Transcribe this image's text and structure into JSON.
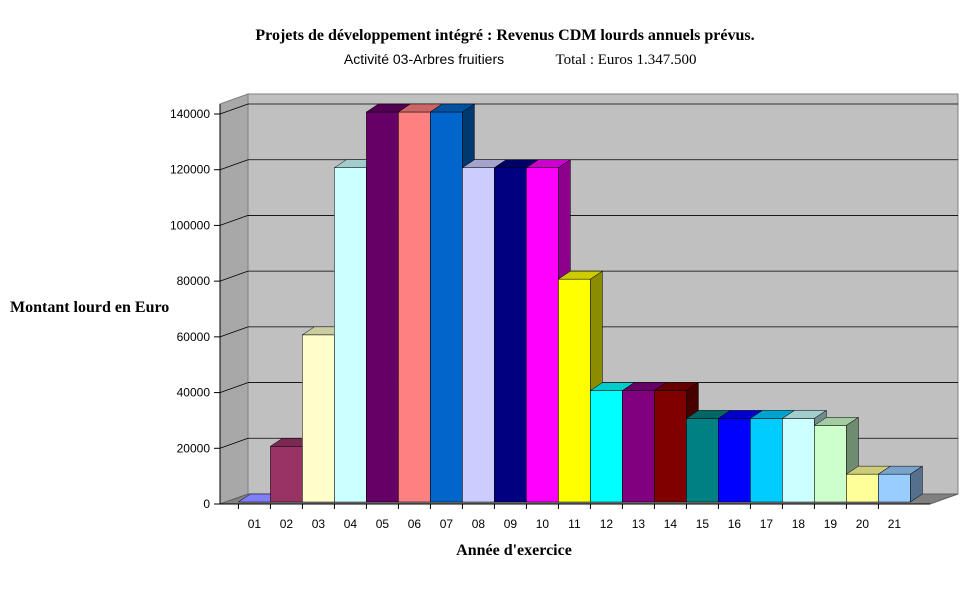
{
  "chart_data": {
    "type": "bar",
    "title": "Projets de développement intégré : Revenus CDM lourds annuels prévus.",
    "subtitle_activity": "Activité 03-Arbres fruitiers",
    "subtitle_total": "Total : Euros 1.347.500",
    "ylabel": "Montant lourd en Euro",
    "xlabel": "Année d'exercice",
    "ylim": [
      0,
      140000
    ],
    "yticks": [
      "0",
      "20000",
      "40000",
      "60000",
      "80000",
      "100000",
      "120000",
      "140000"
    ],
    "grid": true,
    "style": "3d-column",
    "wall_color": "#c0c0c0",
    "categories": [
      "01",
      "02",
      "03",
      "04",
      "05",
      "06",
      "07",
      "08",
      "09",
      "10",
      "11",
      "12",
      "13",
      "14",
      "15",
      "16",
      "17",
      "18",
      "19",
      "20",
      "21"
    ],
    "values": [
      0,
      20000,
      60000,
      120000,
      140000,
      140000,
      140000,
      120000,
      120000,
      120000,
      80000,
      40000,
      40000,
      40000,
      30000,
      30000,
      30000,
      30000,
      27500,
      10000,
      10000
    ],
    "colors": [
      "#8080ff",
      "#993366",
      "#ffffcc",
      "#ccffff",
      "#660066",
      "#ff8080",
      "#0066cc",
      "#ccccff",
      "#000080",
      "#ff00ff",
      "#ffff00",
      "#00ffff",
      "#800080",
      "#800000",
      "#008080",
      "#0000ff",
      "#00ccff",
      "#ccffff",
      "#ccffcc",
      "#ffff99",
      "#99ccff"
    ]
  }
}
